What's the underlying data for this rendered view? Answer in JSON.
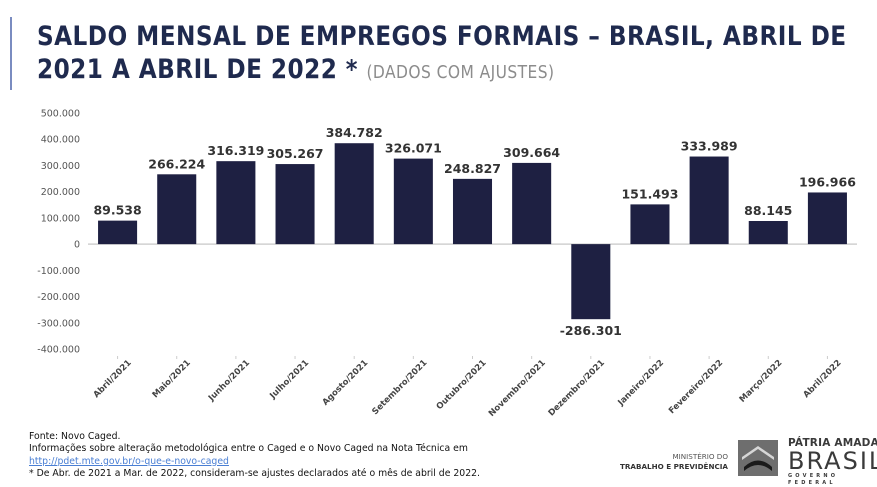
{
  "header": {
    "title_line1": "SALDO MENSAL DE EMPREGOS FORMAIS – BRASIL, ABRIL DE",
    "title_line2": "2021 A ABRIL DE 2022",
    "asterisk": "*",
    "subtitle": "(DADOS COM AJUSTES)"
  },
  "chart_data": {
    "type": "bar",
    "title": "SALDO MENSAL DE EMPREGOS FORMAIS – BRASIL, ABRIL DE 2021 A ABRIL DE 2022 * (DADOS COM AJUSTES)",
    "xlabel": "",
    "ylabel": "",
    "ylim": [
      -400000,
      500000
    ],
    "yticks": [
      500000,
      400000,
      300000,
      200000,
      100000,
      0,
      -100000,
      -200000,
      -300000,
      -400000
    ],
    "ytick_labels": [
      "500.000",
      "400.000",
      "300.000",
      "200.000",
      "100.000",
      "0",
      "-100.000",
      "-200.000",
      "-300.000",
      "-400.000"
    ],
    "grid": false,
    "legend": "none",
    "bar_color": "#1e2042",
    "categories": [
      "Abril/2021",
      "Maio/2021",
      "Junho/2021",
      "Julho/2021",
      "Agosto/2021",
      "Setembro/2021",
      "Outubro/2021",
      "Novembro/2021",
      "Dezembro/2021",
      "Janeiro/2022",
      "Fevereiro/2022",
      "Março/2022",
      "Abril/2022"
    ],
    "values": [
      89538,
      266224,
      316319,
      305267,
      384782,
      326071,
      248827,
      309664,
      -286301,
      151493,
      333989,
      88145,
      196966
    ],
    "data_labels": [
      "89.538",
      "266.224",
      "316.319",
      "305.267",
      "384.782",
      "326.071",
      "248.827",
      "309.664",
      "-286.301",
      "151.493",
      "333.989",
      "88.145",
      "196.966"
    ]
  },
  "footer": {
    "source": "Fonte: Novo Caged.",
    "info": "Informações sobre alteração metodológica entre o Caged e o Novo Caged na Nota Técnica em",
    "link": "http://pdet.mte.gov.br/o-que-e-novo-caged",
    "note": "* De Abr. de 2021 a Mar. de 2022, consideram-se ajustes declarados até o mês de abril de 2022."
  },
  "branding": {
    "ministry_line1": "MINISTÉRIO DO",
    "ministry_line2": "TRABALHO E PREVIDÊNCIA",
    "slogan_top": "PÁTRIA AMADA",
    "slogan_main": "BRASIL",
    "slogan_bottom": "GOVERNO FEDERAL"
  }
}
